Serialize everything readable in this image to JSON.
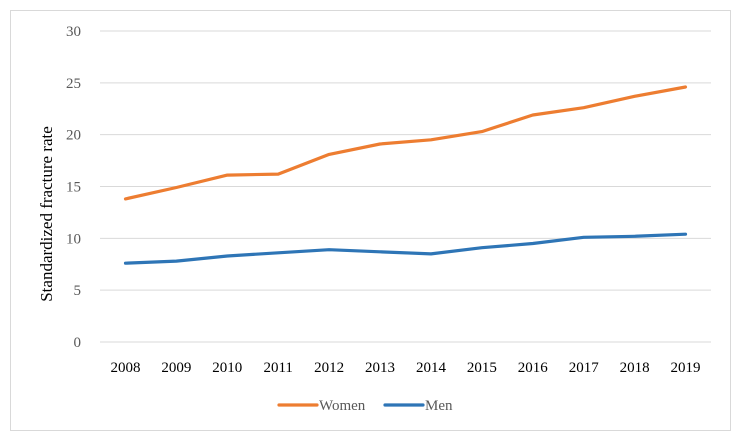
{
  "chart_data": {
    "type": "line",
    "title": "",
    "xlabel": "",
    "ylabel": "Standardized fracture rate",
    "ylim": [
      0,
      30
    ],
    "yticks": [
      "0",
      "5",
      "10",
      "15",
      "20",
      "25",
      "30"
    ],
    "grid": true,
    "legend_position": "bottom",
    "categories": [
      "2008",
      "2009",
      "2010",
      "2011",
      "2012",
      "2013",
      "2014",
      "2015",
      "2016",
      "2017",
      "2018",
      "2019"
    ],
    "series": [
      {
        "name": "Women",
        "color": "#ed7d31",
        "values": [
          13.8,
          14.9,
          16.1,
          16.2,
          18.1,
          19.1,
          19.5,
          20.3,
          21.9,
          22.6,
          23.7,
          24.6
        ]
      },
      {
        "name": "Men",
        "color": "#2e75b6",
        "values": [
          7.6,
          7.8,
          8.3,
          8.6,
          8.9,
          8.7,
          8.5,
          9.1,
          9.5,
          10.1,
          10.2,
          10.4
        ]
      }
    ]
  }
}
